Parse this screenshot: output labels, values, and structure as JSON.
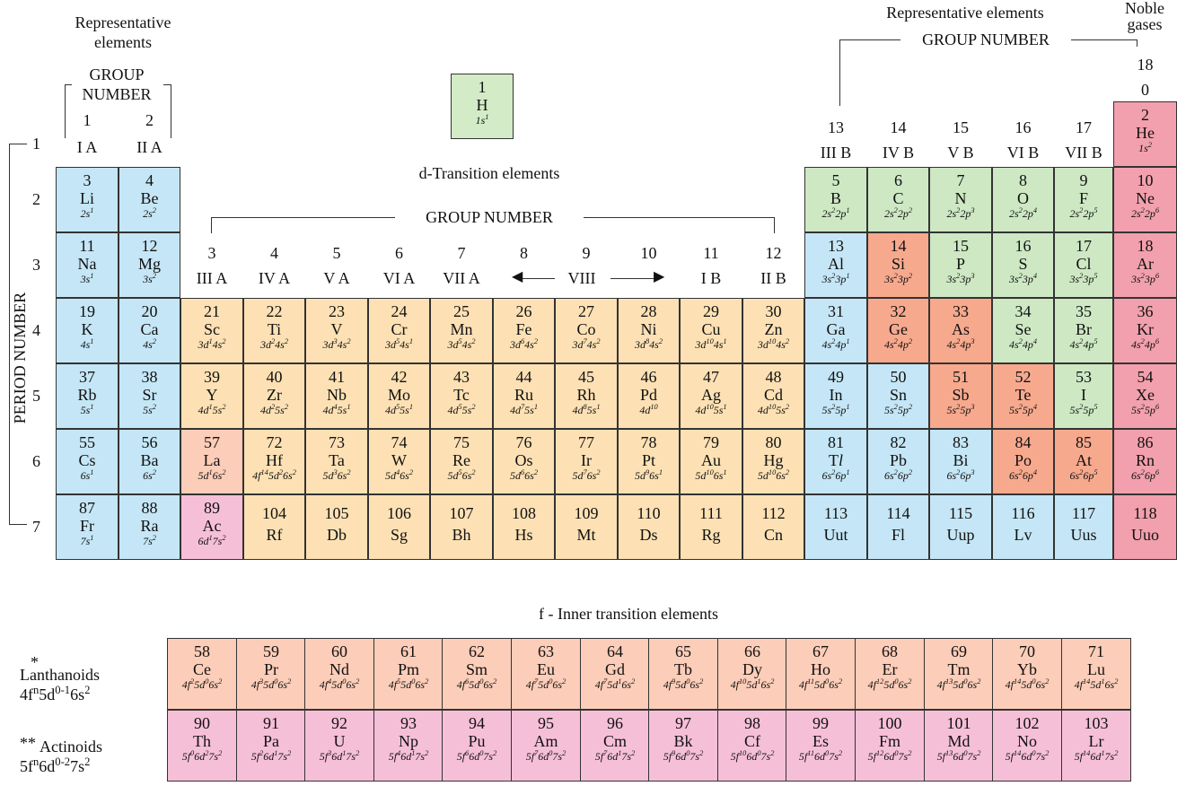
{
  "colors": {
    "s_block": "#c5e6f6",
    "p_green": "#cde8c3",
    "d_block": "#fde1b4",
    "metalloid": "#f7a98e",
    "noble": "#f2a0ad",
    "lanthanoid": "#fccdb8",
    "actinoid": "#f6bfd8",
    "hydrogen": "#d3ebc7"
  },
  "headers": {
    "rep_left": "Representative\nelements",
    "rep_right": "Representative   elements",
    "noble": "Noble\ngases",
    "group_number_left": "GROUP\nNUMBER",
    "group_number_right": "GROUP   NUMBER",
    "group_number_d": "GROUP   NUMBER",
    "d_title": "d-Transition  elements",
    "f_title": "f - Inner  transition  elements",
    "period_number": "PERIOD NUMBER",
    "viii": "VIII"
  },
  "group_labels": [
    {
      "n": "1",
      "r": "I A"
    },
    {
      "n": "2",
      "r": "II A"
    },
    {
      "n": "3",
      "r": "III A"
    },
    {
      "n": "4",
      "r": "IV A"
    },
    {
      "n": "5",
      "r": "V A"
    },
    {
      "n": "6",
      "r": "VI A"
    },
    {
      "n": "7",
      "r": "VII A"
    },
    {
      "n": "8",
      "r": ""
    },
    {
      "n": "9",
      "r": ""
    },
    {
      "n": "10",
      "r": ""
    },
    {
      "n": "11",
      "r": "I B"
    },
    {
      "n": "12",
      "r": "II B"
    },
    {
      "n": "13",
      "r": "III B"
    },
    {
      "n": "14",
      "r": "IV B"
    },
    {
      "n": "15",
      "r": "V B"
    },
    {
      "n": "16",
      "r": "VI B"
    },
    {
      "n": "17",
      "r": "VII B"
    },
    {
      "n": "18",
      "r": "0"
    }
  ],
  "periods": [
    "1",
    "2",
    "3",
    "4",
    "5",
    "6",
    "7"
  ],
  "elements": [
    {
      "n": "1",
      "s": "H",
      "c": "1s^1",
      "g": "H"
    },
    {
      "n": "2",
      "s": "He",
      "c": "1s^2",
      "g": "noble"
    },
    {
      "n": "3",
      "s": "Li",
      "c": "2s^1",
      "g": "s"
    },
    {
      "n": "4",
      "s": "Be",
      "c": "2s^2",
      "g": "s"
    },
    {
      "n": "5",
      "s": "B",
      "c": "2s^2 2p^1",
      "g": "pg"
    },
    {
      "n": "6",
      "s": "C",
      "c": "2s^2 2p^2",
      "g": "pg"
    },
    {
      "n": "7",
      "s": "N",
      "c": "2s^2 2p^3",
      "g": "pg"
    },
    {
      "n": "8",
      "s": "O",
      "c": "2s^2 2p^4",
      "g": "pg"
    },
    {
      "n": "9",
      "s": "F",
      "c": "2s^2 2p^5",
      "g": "pg"
    },
    {
      "n": "10",
      "s": "Ne",
      "c": "2s^2 2p^6",
      "g": "noble"
    },
    {
      "n": "11",
      "s": "Na",
      "c": "3s^1",
      "g": "s"
    },
    {
      "n": "12",
      "s": "Mg",
      "c": "3s^2",
      "g": "s"
    },
    {
      "n": "13",
      "s": "Al",
      "c": "3s^2 3p^1",
      "g": "s"
    },
    {
      "n": "14",
      "s": "Si",
      "c": "3s^2 3p^2",
      "g": "m"
    },
    {
      "n": "15",
      "s": "P",
      "c": "3s^2 3p^3",
      "g": "pg"
    },
    {
      "n": "16",
      "s": "S",
      "c": "3s^2 3p^4",
      "g": "pg"
    },
    {
      "n": "17",
      "s": "Cl",
      "c": "3s^2 3p^5",
      "g": "pg"
    },
    {
      "n": "18",
      "s": "Ar",
      "c": "3s^2 3p^6",
      "g": "noble"
    },
    {
      "n": "19",
      "s": "K",
      "c": "4s^1",
      "g": "s"
    },
    {
      "n": "20",
      "s": "Ca",
      "c": "4s^2",
      "g": "s"
    },
    {
      "n": "21",
      "s": "Sc",
      "c": "3d^1 4s^2",
      "g": "d"
    },
    {
      "n": "22",
      "s": "Ti",
      "c": "3d^2 4s^2",
      "g": "d"
    },
    {
      "n": "23",
      "s": "V",
      "c": "3d^3 4s^2",
      "g": "d"
    },
    {
      "n": "24",
      "s": "Cr",
      "c": "3d^5 4s^1",
      "g": "d"
    },
    {
      "n": "25",
      "s": "Mn",
      "c": "3d^5 4s^2",
      "g": "d"
    },
    {
      "n": "26",
      "s": "Fe",
      "c": "3d^6 4s^2",
      "g": "d"
    },
    {
      "n": "27",
      "s": "Co",
      "c": "3d^7 4s^2",
      "g": "d"
    },
    {
      "n": "28",
      "s": "Ni",
      "c": "3d^8 4s^2",
      "g": "d"
    },
    {
      "n": "29",
      "s": "Cu",
      "c": "3d^10 4s^1",
      "g": "d"
    },
    {
      "n": "30",
      "s": "Zn",
      "c": "3d^10 4s^2",
      "g": "d"
    },
    {
      "n": "31",
      "s": "Ga",
      "c": "4s^2 4p^1",
      "g": "s"
    },
    {
      "n": "32",
      "s": "Ge",
      "c": "4s^2 4p^2",
      "g": "m"
    },
    {
      "n": "33",
      "s": "As",
      "c": "4s^2 4p^3",
      "g": "m"
    },
    {
      "n": "34",
      "s": "Se",
      "c": "4s^2 4p^4",
      "g": "pg"
    },
    {
      "n": "35",
      "s": "Br",
      "c": "4s^2 4p^5",
      "g": "pg"
    },
    {
      "n": "36",
      "s": "Kr",
      "c": "4s^2 4p^6",
      "g": "noble"
    },
    {
      "n": "37",
      "s": "Rb",
      "c": "5s^1",
      "g": "s"
    },
    {
      "n": "38",
      "s": "Sr",
      "c": "5s^2",
      "g": "s"
    },
    {
      "n": "39",
      "s": "Y",
      "c": "4d^1 5s^2",
      "g": "d"
    },
    {
      "n": "40",
      "s": "Zr",
      "c": "4d^2 5s^2",
      "g": "d"
    },
    {
      "n": "41",
      "s": "Nb",
      "c": "4d^4 5s^1",
      "g": "d"
    },
    {
      "n": "42",
      "s": "Mo",
      "c": "4d^5 5s^1",
      "g": "d"
    },
    {
      "n": "43",
      "s": "Tc",
      "c": "4d^5 5s^2",
      "g": "d"
    },
    {
      "n": "44",
      "s": "Ru",
      "c": "4d^7 5s^1",
      "g": "d"
    },
    {
      "n": "45",
      "s": "Rh",
      "c": "4d^8 5s^1",
      "g": "d"
    },
    {
      "n": "46",
      "s": "Pd",
      "c": "4d^10",
      "g": "d"
    },
    {
      "n": "47",
      "s": "Ag",
      "c": "4d^10 5s^1",
      "g": "d"
    },
    {
      "n": "48",
      "s": "Cd",
      "c": "4d^10 5s^2",
      "g": "d"
    },
    {
      "n": "49",
      "s": "In",
      "c": "5s^2 5p^1",
      "g": "s"
    },
    {
      "n": "50",
      "s": "Sn",
      "c": "5s^2 5p^2",
      "g": "s"
    },
    {
      "n": "51",
      "s": "Sb",
      "c": "5s^2 5p^3",
      "g": "m"
    },
    {
      "n": "52",
      "s": "Te",
      "c": "5s^2 5p^4",
      "g": "m"
    },
    {
      "n": "53",
      "s": "I",
      "c": "5s^2 5p^5",
      "g": "pg"
    },
    {
      "n": "54",
      "s": "Xe",
      "c": "5s^2 5p^6",
      "g": "noble"
    },
    {
      "n": "55",
      "s": "Cs",
      "c": "6s^1",
      "g": "s"
    },
    {
      "n": "56",
      "s": "Ba",
      "c": "6s^2",
      "g": "s"
    },
    {
      "n": "57",
      "s": "La",
      "c": "5d^1 6s^2",
      "g": "la",
      "mark": "*"
    },
    {
      "n": "72",
      "s": "Hf",
      "c": "4f^14 5d^2 6s^2",
      "g": "d"
    },
    {
      "n": "73",
      "s": "Ta",
      "c": "5d^3 6s^2",
      "g": "d"
    },
    {
      "n": "74",
      "s": "W",
      "c": "5d^4 6s^2",
      "g": "d"
    },
    {
      "n": "75",
      "s": "Re",
      "c": "5d^5 6s^2",
      "g": "d"
    },
    {
      "n": "76",
      "s": "Os",
      "c": "5d^6 6s^2",
      "g": "d"
    },
    {
      "n": "77",
      "s": "Ir",
      "c": "5d^7 6s^2",
      "g": "d"
    },
    {
      "n": "78",
      "s": "Pt",
      "c": "5d^9 6s^1",
      "g": "d"
    },
    {
      "n": "79",
      "s": "Au",
      "c": "5d^10 6s^1",
      "g": "d"
    },
    {
      "n": "80",
      "s": "Hg",
      "c": "5d^10 6s^2",
      "g": "d"
    },
    {
      "n": "81",
      "s": "Tl",
      "c": "6s^2 6p^1",
      "g": "s"
    },
    {
      "n": "82",
      "s": "Pb",
      "c": "6s^2 6p^2",
      "g": "s"
    },
    {
      "n": "83",
      "s": "Bi",
      "c": "6s^2 6p^3",
      "g": "s"
    },
    {
      "n": "84",
      "s": "Po",
      "c": "6s^2 6p^4",
      "g": "m"
    },
    {
      "n": "85",
      "s": "At",
      "c": "6s^2 6p^5",
      "g": "m"
    },
    {
      "n": "86",
      "s": "Rn",
      "c": "6s^2 6p^6",
      "g": "noble"
    },
    {
      "n": "87",
      "s": "Fr",
      "c": "7s^1",
      "g": "s"
    },
    {
      "n": "88",
      "s": "Ra",
      "c": "7s^2",
      "g": "s"
    },
    {
      "n": "89",
      "s": "Ac",
      "c": "6d^1 7s^2",
      "g": "ac",
      "mark": "**"
    },
    {
      "n": "104",
      "s": "Rf",
      "c": "",
      "g": "d"
    },
    {
      "n": "105",
      "s": "Db",
      "c": "",
      "g": "d"
    },
    {
      "n": "106",
      "s": "Sg",
      "c": "",
      "g": "d"
    },
    {
      "n": "107",
      "s": "Bh",
      "c": "",
      "g": "d"
    },
    {
      "n": "108",
      "s": "Hs",
      "c": "",
      "g": "d"
    },
    {
      "n": "109",
      "s": "Mt",
      "c": "",
      "g": "d"
    },
    {
      "n": "110",
      "s": "Ds",
      "c": "",
      "g": "d"
    },
    {
      "n": "111",
      "s": "Rg",
      "c": "",
      "g": "d"
    },
    {
      "n": "112",
      "s": "Cn",
      "c": "",
      "g": "d"
    },
    {
      "n": "113",
      "s": "Uut",
      "c": "",
      "g": "s"
    },
    {
      "n": "114",
      "s": "Fl",
      "c": "",
      "g": "s"
    },
    {
      "n": "115",
      "s": "Uup",
      "c": "",
      "g": "s"
    },
    {
      "n": "116",
      "s": "Lv",
      "c": "",
      "g": "s"
    },
    {
      "n": "117",
      "s": "Uus",
      "c": "",
      "g": "s"
    },
    {
      "n": "118",
      "s": "Uuo",
      "c": "",
      "g": "noble"
    }
  ],
  "lanthanoids": {
    "label": "Lanthanoids",
    "mark": "*",
    "config": "4f^n 5d^0-1 6s^2",
    "items": [
      {
        "n": "58",
        "s": "Ce",
        "c": "4f^2 5d^0 6s^2"
      },
      {
        "n": "59",
        "s": "Pr",
        "c": "4f^3 5d^0 6s^2"
      },
      {
        "n": "60",
        "s": "Nd",
        "c": "4f^4 5d^0 6s^2"
      },
      {
        "n": "61",
        "s": "Pm",
        "c": "4f^5 5d^0 6s^2"
      },
      {
        "n": "62",
        "s": "Sm",
        "c": "4f^6 5d^0 6s^2"
      },
      {
        "n": "63",
        "s": "Eu",
        "c": "4f^7 5d^0 6s^2"
      },
      {
        "n": "64",
        "s": "Gd",
        "c": "4f^7 5d^1 6s^2"
      },
      {
        "n": "65",
        "s": "Tb",
        "c": "4f^9 5d^0 6s^2"
      },
      {
        "n": "66",
        "s": "Dy",
        "c": "4f^10 5d^1 6s^2"
      },
      {
        "n": "67",
        "s": "Ho",
        "c": "4f^11 5d^0 6s^2"
      },
      {
        "n": "68",
        "s": "Er",
        "c": "4f^12 5d^0 6s^2"
      },
      {
        "n": "69",
        "s": "Tm",
        "c": "4f^13 5d^0 6s^2"
      },
      {
        "n": "70",
        "s": "Yb",
        "c": "4f^14 5d^0 6s^2"
      },
      {
        "n": "71",
        "s": "Lu",
        "c": "4f^14 5d^1 6s^2"
      }
    ]
  },
  "actinoids": {
    "label": "Actinoids",
    "mark": "**",
    "config": "5f^n 6d^0-2 7s^2",
    "items": [
      {
        "n": "90",
        "s": "Th",
        "c": "5f^0 6d^2 7s^2"
      },
      {
        "n": "91",
        "s": "Pa",
        "c": "5f^2 6d^1 7s^2"
      },
      {
        "n": "92",
        "s": "U",
        "c": "5f^3 6d^1 7s^2"
      },
      {
        "n": "93",
        "s": "Np",
        "c": "5f^4 6d^1 7s^2"
      },
      {
        "n": "94",
        "s": "Pu",
        "c": "5f^6 6d^0 7s^2"
      },
      {
        "n": "95",
        "s": "Am",
        "c": "5f^7 6d^0 7s^2"
      },
      {
        "n": "96",
        "s": "Cm",
        "c": "5f^7 6d^1 7s^2"
      },
      {
        "n": "97",
        "s": "Bk",
        "c": "5f^9 6d^0 7s^2"
      },
      {
        "n": "98",
        "s": "Cf",
        "c": "5f^10 6d^0 7s^2"
      },
      {
        "n": "99",
        "s": "Es",
        "c": "5f^11 6d^0 7s^2"
      },
      {
        "n": "100",
        "s": "Fm",
        "c": "5f^12 6d^0 7s^2"
      },
      {
        "n": "101",
        "s": "Md",
        "c": "5f^13 6d^0 7s^2"
      },
      {
        "n": "102",
        "s": "No",
        "c": "5f^14 6d^0 7s^2"
      },
      {
        "n": "103",
        "s": "Lr",
        "c": "5f^14 6d^1 7s^2"
      }
    ]
  }
}
